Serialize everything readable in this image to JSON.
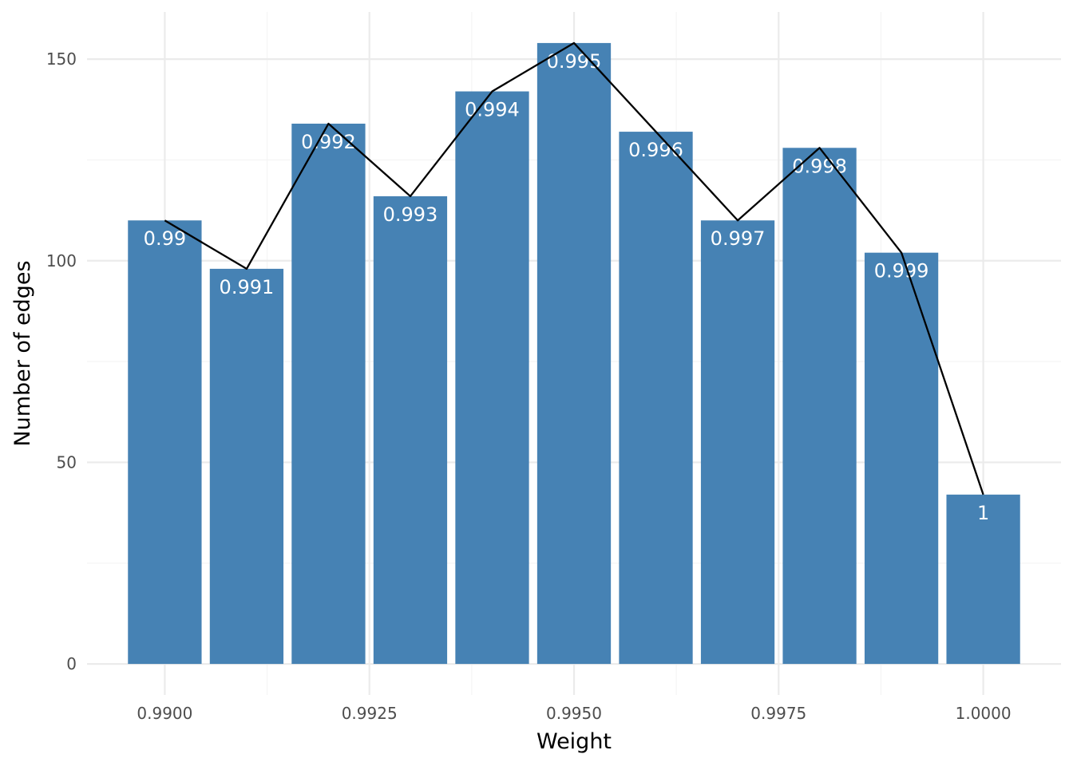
{
  "chart_data": {
    "type": "bar",
    "title": "",
    "xlabel": "Weight",
    "ylabel": "Number of edges",
    "x": [
      0.99,
      0.991,
      0.992,
      0.993,
      0.994,
      0.995,
      0.996,
      0.997,
      0.998,
      0.999,
      1.0
    ],
    "values": [
      110,
      98,
      134,
      116,
      142,
      154,
      132,
      110,
      128,
      102,
      42
    ],
    "bar_labels": [
      "0.99",
      "0.991",
      "0.992",
      "0.993",
      "0.994",
      "0.995",
      "0.996",
      "0.997",
      "0.998",
      "0.999",
      "1"
    ],
    "overlay": {
      "type": "line",
      "values": [
        110,
        98,
        134,
        116,
        142,
        154,
        132,
        110,
        128,
        102,
        42
      ],
      "color": "#000000"
    },
    "xlim": [
      0.98905,
      1.00095
    ],
    "ylim": [
      -7.7,
      161.7
    ],
    "x_ticks": [
      0.99,
      0.9925,
      0.995,
      0.9975,
      1.0
    ],
    "x_tick_labels": [
      "0.9900",
      "0.9925",
      "0.9950",
      "0.9975",
      "1.0000"
    ],
    "y_ticks": [
      0,
      50,
      100,
      150
    ],
    "y_tick_labels": [
      "0",
      "50",
      "100",
      "150"
    ],
    "bar_color": "#4682b4",
    "grid": true,
    "legend": "none"
  }
}
